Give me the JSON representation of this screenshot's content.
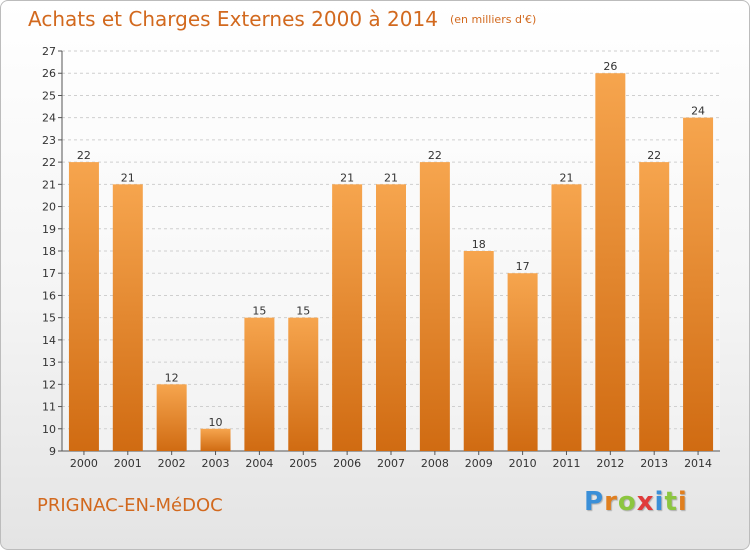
{
  "header": {
    "title": "Achats et Charges Externes 2000 à 2014",
    "subtitle": "(en milliers d'€)"
  },
  "footer": {
    "town": "PRIGNAC-EN-MéDOC",
    "logo": [
      "P",
      "r",
      "o",
      "x",
      "i",
      "t",
      "i"
    ]
  },
  "colors": {
    "title": "#d2691e",
    "bar_top": "#f6a54e",
    "bar_bottom": "#d06b12",
    "logo": [
      "#3a8fd8",
      "#e07f1f",
      "#8cc63f",
      "#e03b3b",
      "#3a8fd8",
      "#8cc63f",
      "#e07f1f"
    ]
  },
  "chart_data": {
    "type": "bar",
    "title": "Achats et Charges Externes 2000 à 2014",
    "subtitle": "(en milliers d'€)",
    "categories": [
      "2000",
      "2001",
      "2002",
      "2003",
      "2004",
      "2005",
      "2006",
      "2007",
      "2008",
      "2009",
      "2010",
      "2011",
      "2012",
      "2013",
      "2014"
    ],
    "values": [
      22,
      21,
      12,
      10,
      15,
      15,
      21,
      21,
      22,
      18,
      17,
      21,
      26,
      22,
      24
    ],
    "ylim": [
      9,
      27
    ],
    "yticks": [
      9,
      10,
      11,
      12,
      13,
      14,
      15,
      16,
      17,
      18,
      19,
      20,
      21,
      22,
      23,
      24,
      25,
      26,
      27
    ],
    "grid": true,
    "xlabel": "",
    "ylabel": ""
  }
}
